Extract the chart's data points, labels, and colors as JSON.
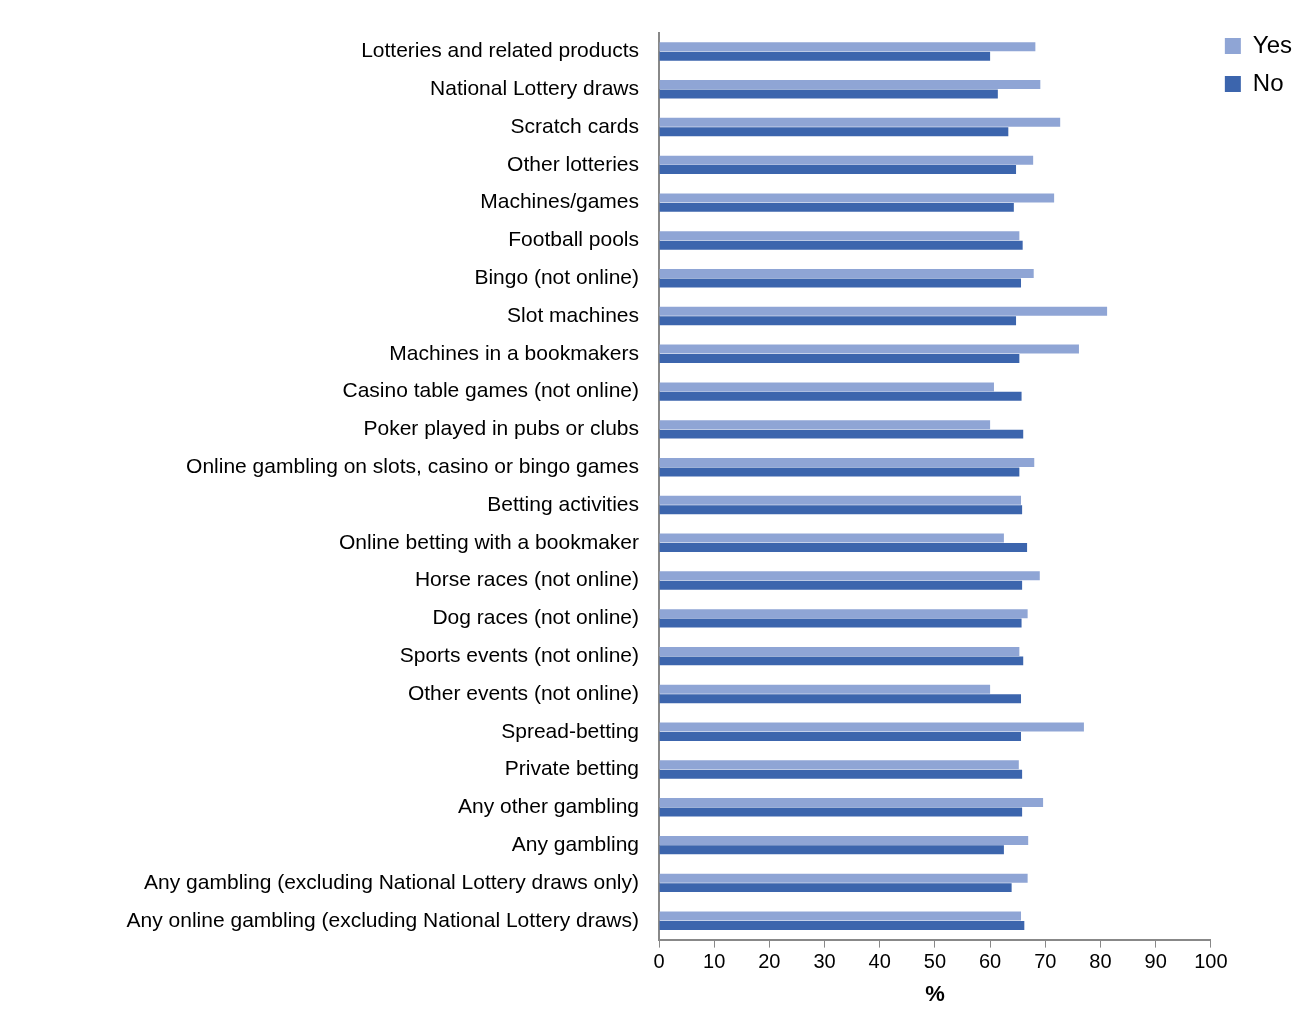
{
  "chart_data": {
    "type": "bar",
    "orientation": "horizontal",
    "xlabel": "%",
    "categories": [
      "Lotteries and related products",
      "National Lottery draws",
      "Scratch cards",
      "Other lotteries",
      "Machines/games",
      "Football pools",
      "Bingo (not online)",
      "Slot machines",
      "Machines in a bookmakers",
      "Casino table games (not online)",
      "Poker played in pubs or clubs",
      "Online gambling on slots, casino or bingo games",
      "Betting activities",
      "Online betting with a bookmaker",
      "Horse races (not online)",
      "Dog races (not online)",
      "Sports events (not online)",
      "Other events (not online)",
      "Spread-betting",
      "Private betting",
      "Any other gambling",
      "Any gambling",
      "Any gambling (excluding National Lottery draws only)",
      "Any online gambling (excluding National Lottery draws)"
    ],
    "series": [
      {
        "name": "Yes",
        "color": "#8fa5d5",
        "values": [
          68.2,
          69.1,
          72.7,
          67.8,
          71.6,
          65.3,
          67.9,
          81.2,
          76.1,
          60.7,
          60.0,
          68.0,
          65.6,
          62.5,
          69.0,
          66.8,
          65.3,
          60.0,
          77.0,
          65.2,
          69.6,
          66.9,
          66.8,
          65.6
        ]
      },
      {
        "name": "No",
        "color": "#3c65ad",
        "values": [
          60.0,
          61.4,
          63.3,
          64.7,
          64.3,
          65.9,
          65.6,
          64.7,
          65.3,
          65.7,
          66.0,
          65.3,
          65.8,
          66.7,
          65.8,
          65.7,
          66.0,
          65.6,
          65.6,
          65.8,
          65.8,
          62.5,
          63.9,
          66.2
        ]
      }
    ],
    "xlim": [
      0,
      100
    ],
    "xticks": [
      0,
      10,
      20,
      30,
      40,
      50,
      60,
      70,
      80,
      90,
      100
    ],
    "grid": false,
    "legend": "top right"
  }
}
